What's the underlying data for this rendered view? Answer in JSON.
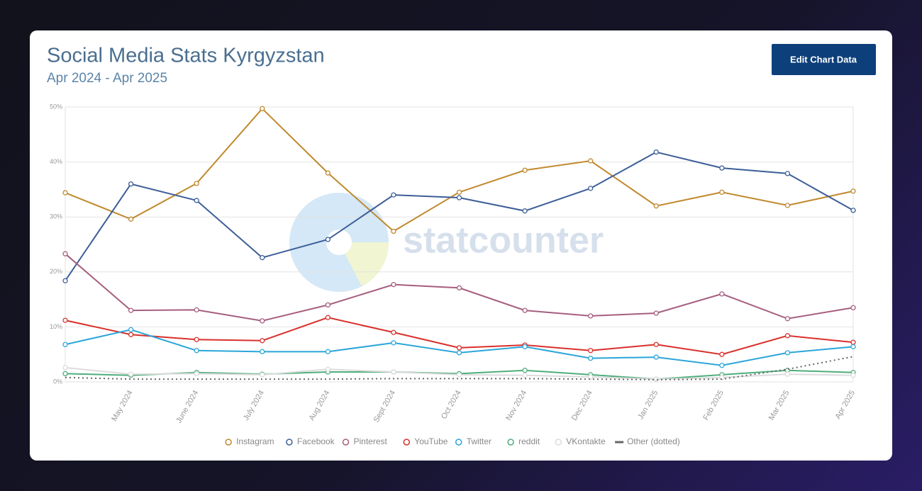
{
  "header": {
    "title": "Social Media Stats Kyrgyzstan",
    "subtitle": "Apr 2024 - Apr 2025",
    "button": "Edit Chart Data"
  },
  "chart_data": {
    "type": "line",
    "watermark": "statcounter",
    "categories": [
      null,
      "May 2024",
      "June 2024",
      "July 2024",
      "Aug 2024",
      "Sept 2024",
      "Oct 2024",
      "Nov 2024",
      "Dec 2024",
      "Jan 2025",
      "Feb 2025",
      "Mar 2025",
      "Apr 2025"
    ],
    "ylim": [
      0,
      50
    ],
    "yticks": [
      {
        "value": 0,
        "label": "0%"
      },
      {
        "value": 10,
        "label": "10%"
      },
      {
        "value": 20,
        "label": "20%"
      },
      {
        "value": 30,
        "label": "30%"
      },
      {
        "value": 40,
        "label": "40%"
      },
      {
        "value": 50,
        "label": "50%"
      }
    ],
    "grid": true,
    "legend": "bottom",
    "series": [
      {
        "name": "Instagram",
        "color": "#c0892e",
        "values": [
          34.4,
          29.6,
          36.1,
          49.7,
          38.0,
          27.4,
          34.5,
          38.5,
          40.2,
          32.0,
          34.5,
          32.1,
          34.7
        ]
      },
      {
        "name": "Facebook",
        "color": "#3d5e98",
        "values": [
          18.4,
          36.0,
          33.0,
          22.6,
          25.9,
          34.0,
          33.5,
          31.1,
          35.2,
          41.8,
          38.9,
          37.9,
          31.2
        ]
      },
      {
        "name": "Pinterest",
        "color": "#a65e7e",
        "values": [
          23.3,
          13.0,
          13.1,
          11.1,
          14.0,
          17.7,
          17.1,
          13.0,
          12.0,
          12.5,
          16.0,
          11.5,
          13.5
        ]
      },
      {
        "name": "YouTube",
        "color": "#d9302c",
        "values": [
          11.2,
          8.6,
          7.7,
          7.5,
          11.7,
          9.0,
          6.2,
          6.7,
          5.7,
          6.8,
          5.0,
          8.4,
          7.2
        ]
      },
      {
        "name": "Twitter",
        "color": "#2ba6d9",
        "values": [
          6.8,
          9.5,
          5.7,
          5.5,
          5.5,
          7.1,
          5.3,
          6.4,
          4.3,
          4.5,
          3.0,
          5.3,
          6.4
        ]
      },
      {
        "name": "reddit",
        "color": "#4fae7c",
        "values": [
          1.5,
          1.2,
          1.7,
          1.4,
          1.8,
          1.8,
          1.5,
          2.1,
          1.3,
          0.5,
          1.3,
          2.1,
          1.7
        ]
      },
      {
        "name": "VKontakte",
        "color": "#dcdcdc",
        "values": [
          2.6,
          1.4,
          1.5,
          1.3,
          2.3,
          1.8,
          1.3,
          1.2,
          0.9,
          0.5,
          0.8,
          1.4,
          1.2
        ]
      },
      {
        "name": "Other (dotted)",
        "color": "#666666",
        "dotted": true,
        "values": [
          0.8,
          0.5,
          0.5,
          0.5,
          0.5,
          0.6,
          0.6,
          0.6,
          0.5,
          0.4,
          0.5,
          2.3,
          4.6
        ]
      }
    ]
  }
}
